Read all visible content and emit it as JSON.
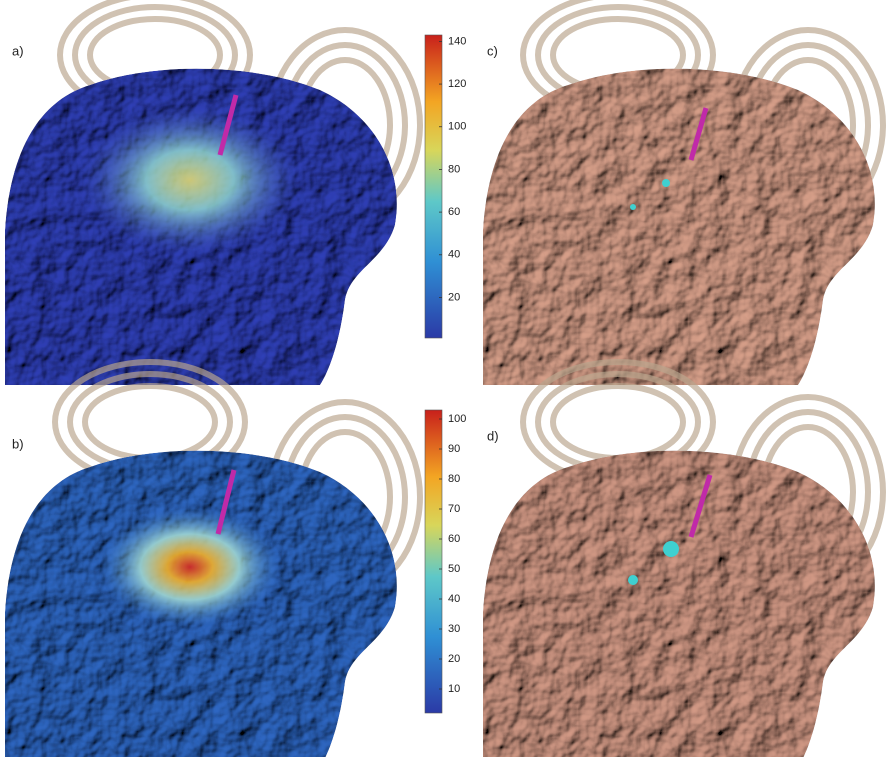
{
  "panels": [
    {
      "label": "a)"
    },
    {
      "label": "b)"
    },
    {
      "label": "c)"
    },
    {
      "label": "d)"
    }
  ],
  "colorbars": [
    {
      "range": [
        1,
        143
      ],
      "ticks": [
        20,
        40,
        60,
        80,
        100,
        120,
        140
      ]
    },
    {
      "range": [
        2,
        103
      ],
      "ticks": [
        10,
        20,
        30,
        40,
        50,
        60,
        70,
        80,
        90,
        100
      ]
    }
  ]
}
